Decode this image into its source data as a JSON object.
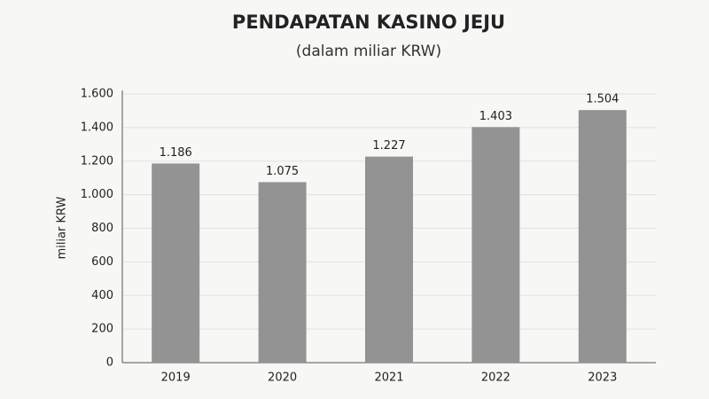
{
  "chart_data": {
    "type": "bar",
    "title": "PENDAPATAN KASINO JEJU",
    "subtitle": "(dalam miliar KRW)",
    "y_label": "miliar KRW",
    "categories": [
      "2019",
      "2020",
      "2021",
      "2022",
      "2023"
    ],
    "values": [
      1186,
      1075,
      1227,
      1403,
      1504
    ],
    "value_labels": [
      "1.186",
      "1.075",
      "1.227",
      "1.403",
      "1.504"
    ],
    "color": "#939393",
    "ylim": [
      0,
      1600
    ],
    "yticks": [
      0,
      200,
      400,
      600,
      800,
      {
        "value": 1000,
        "label": "1.000"
      },
      {
        "value": 1200,
        "label": "1.200"
      },
      {
        "value": 1400,
        "label": "1.400"
      },
      {
        "value": 1600,
        "label": "1.600"
      }
    ],
    "grid": true
  }
}
